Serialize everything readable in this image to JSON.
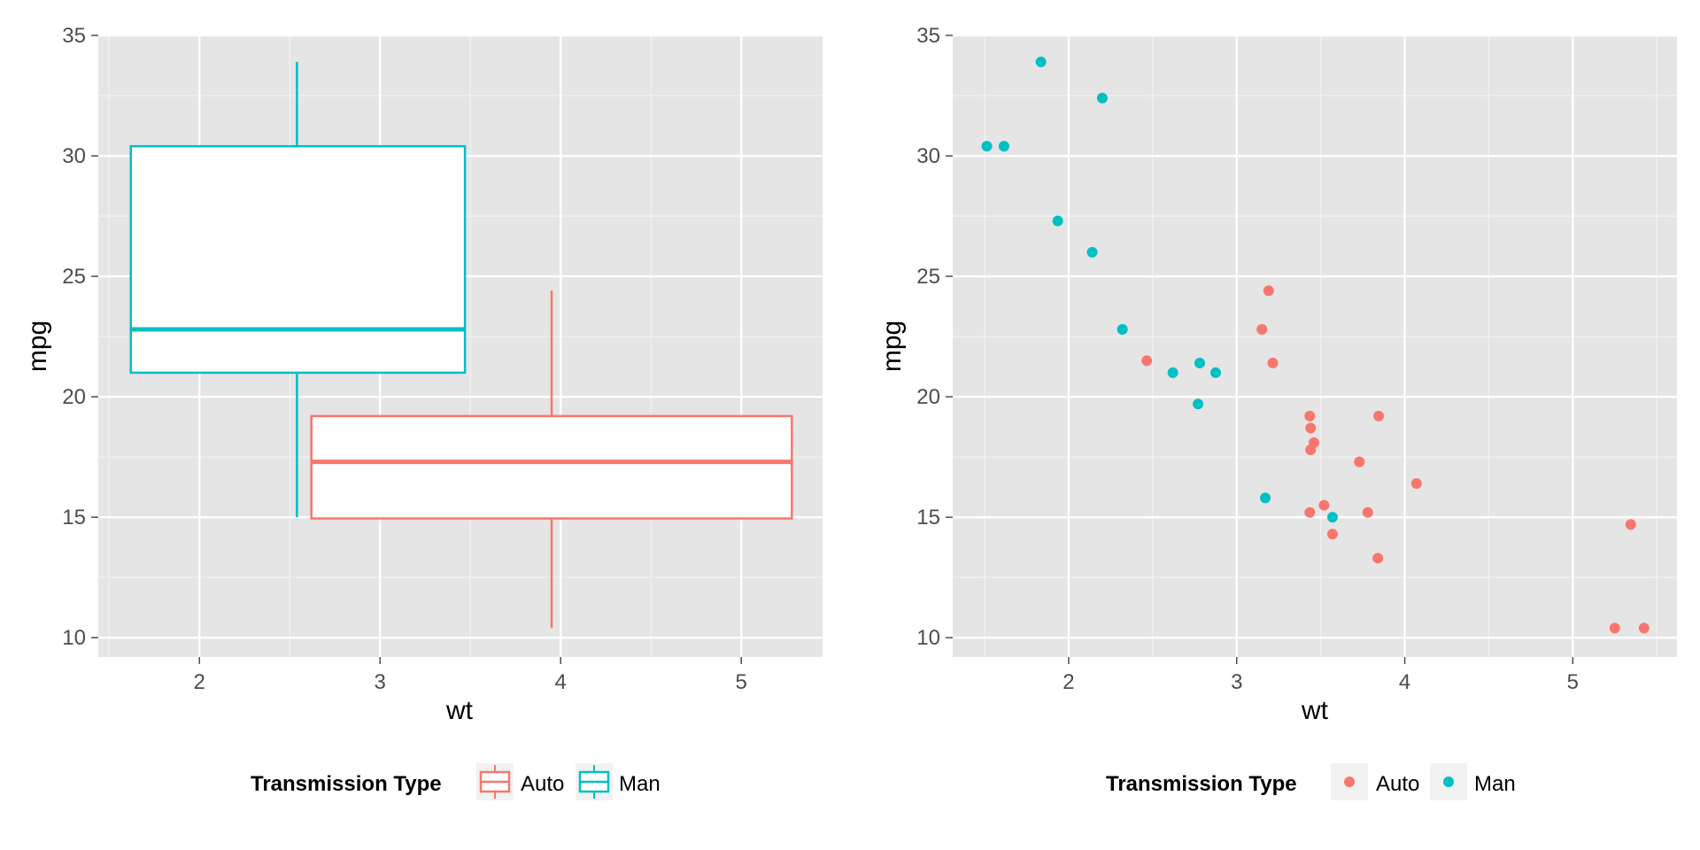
{
  "colors": {
    "panel_bg": "#e5e5e5",
    "grid_major": "#ffffff",
    "grid_minor": "#f2f2f2",
    "auto": "#f8766d",
    "man": "#00bfc4",
    "legend_key_bg": "#f2f2f2"
  },
  "chart_data": [
    {
      "type": "box",
      "xlabel": "wt",
      "ylabel": "mpg",
      "xlim": [
        1.44,
        5.45
      ],
      "ylim": [
        9.2,
        35
      ],
      "x_ticks": [
        2,
        3,
        4,
        5
      ],
      "y_ticks": [
        10,
        15,
        20,
        25,
        30,
        35
      ],
      "grid": true,
      "legend": {
        "title": "Transmission Type",
        "position": "bottom",
        "entries": [
          {
            "label": "Auto",
            "color": "#f8766d"
          },
          {
            "label": "Man",
            "color": "#00bfc4"
          }
        ]
      },
      "boxes": [
        {
          "group": "Man",
          "x_center": 2.54,
          "x_range": [
            1.62,
            3.47
          ],
          "whisker_low": 15.0,
          "q1": 21.0,
          "median": 22.8,
          "q3": 30.4,
          "whisker_high": 33.9,
          "color": "#00bfc4"
        },
        {
          "group": "Auto",
          "x_center": 3.95,
          "x_range": [
            2.62,
            5.28
          ],
          "whisker_low": 10.4,
          "q1": 14.95,
          "median": 17.3,
          "q3": 19.2,
          "whisker_high": 24.4,
          "color": "#f8766d"
        }
      ]
    },
    {
      "type": "scatter",
      "xlabel": "wt",
      "ylabel": "mpg",
      "xlim": [
        1.31,
        5.62
      ],
      "ylim": [
        9.2,
        35
      ],
      "x_ticks": [
        2,
        3,
        4,
        5
      ],
      "y_ticks": [
        10,
        15,
        20,
        25,
        30,
        35
      ],
      "grid": true,
      "legend": {
        "title": "Transmission Type",
        "position": "bottom",
        "entries": [
          {
            "label": "Auto",
            "color": "#f8766d"
          },
          {
            "label": "Man",
            "color": "#00bfc4"
          }
        ]
      },
      "series": [
        {
          "name": "Man",
          "color": "#00bfc4",
          "points": [
            [
              1.513,
              30.4
            ],
            [
              1.615,
              30.4
            ],
            [
              1.835,
              33.9
            ],
            [
              1.935,
              27.3
            ],
            [
              2.14,
              26.0
            ],
            [
              2.2,
              32.4
            ],
            [
              2.32,
              22.8
            ],
            [
              2.62,
              21.0
            ],
            [
              2.77,
              19.7
            ],
            [
              2.78,
              21.4
            ],
            [
              2.875,
              21.0
            ],
            [
              3.17,
              15.8
            ],
            [
              3.57,
              15.0
            ]
          ]
        },
        {
          "name": "Auto",
          "color": "#f8766d",
          "points": [
            [
              2.465,
              21.5
            ],
            [
              3.15,
              22.8
            ],
            [
              3.19,
              24.4
            ],
            [
              3.215,
              21.4
            ],
            [
              3.435,
              19.2
            ],
            [
              3.44,
              18.7
            ],
            [
              3.44,
              17.8
            ],
            [
              3.46,
              18.1
            ],
            [
              3.435,
              15.2
            ],
            [
              3.52,
              15.5
            ],
            [
              3.57,
              14.3
            ],
            [
              3.73,
              17.3
            ],
            [
              3.78,
              15.2
            ],
            [
              3.84,
              13.3
            ],
            [
              3.845,
              19.2
            ],
            [
              4.07,
              16.4
            ],
            [
              5.25,
              10.4
            ],
            [
              5.345,
              14.7
            ],
            [
              5.424,
              10.4
            ]
          ]
        }
      ]
    }
  ]
}
